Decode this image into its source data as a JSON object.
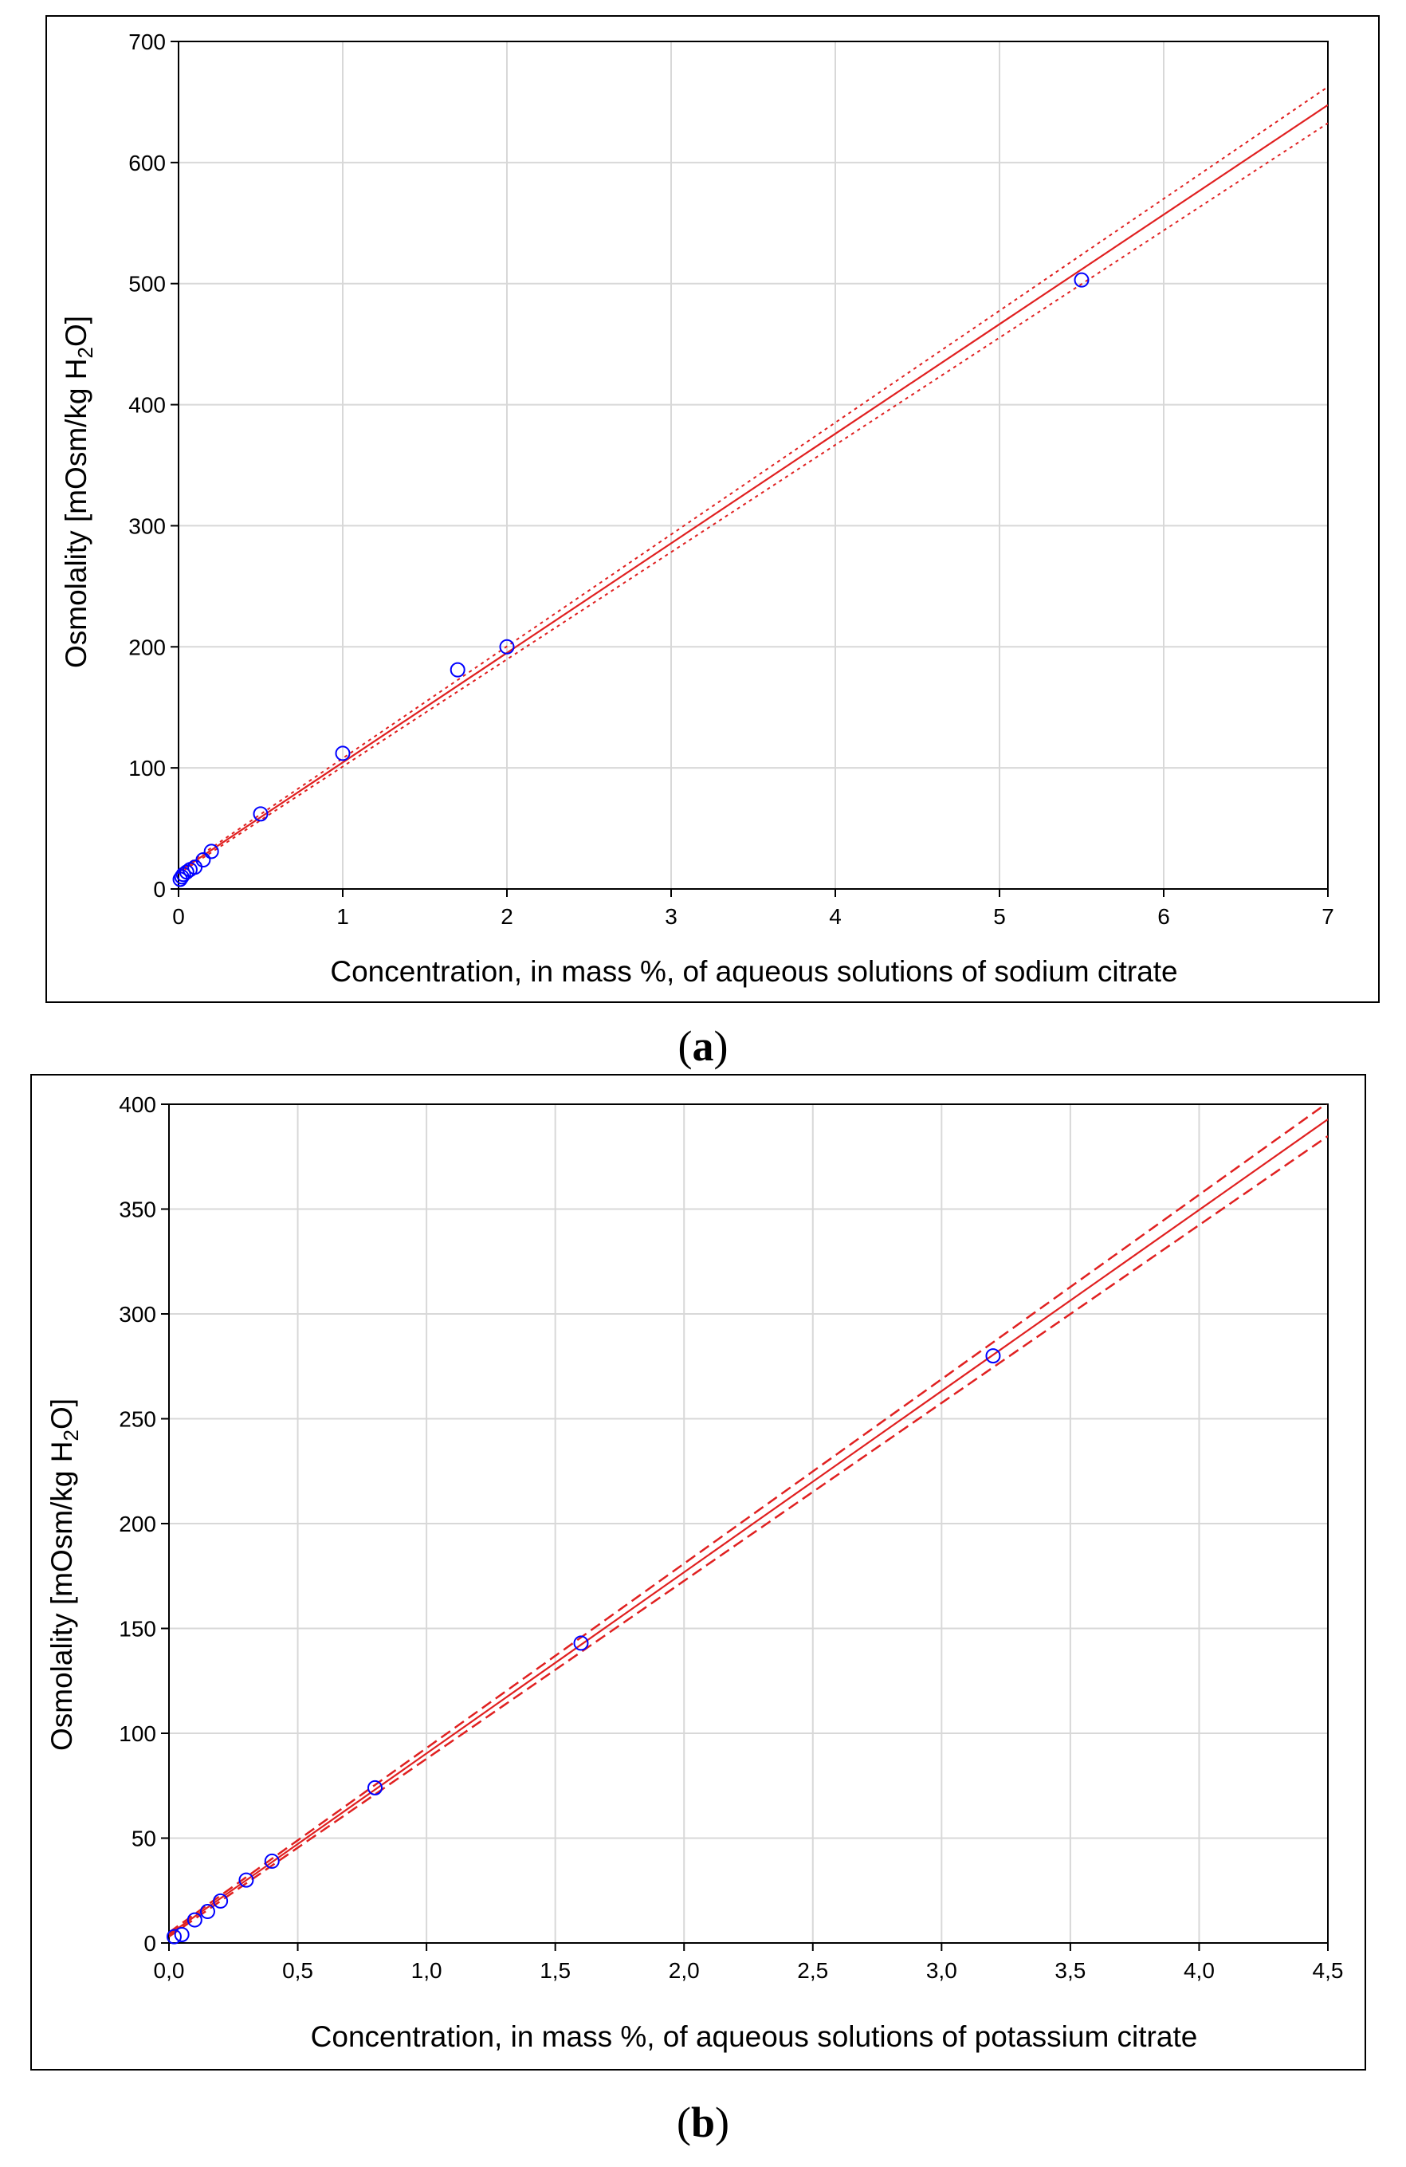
{
  "chart_data": [
    {
      "type": "scatter",
      "panel_label": "a",
      "xlabel": "Concentration, in mass %, of aqueous solutions of sodium citrate",
      "ylabel": "Osmolality [mOsm/kg H2O]",
      "xlim": [
        0,
        7
      ],
      "ylim": [
        0,
        700
      ],
      "xticks": [
        "0",
        "1",
        "2",
        "3",
        "4",
        "5",
        "6",
        "7"
      ],
      "yticks": [
        "0",
        "100",
        "200",
        "300",
        "400",
        "500",
        "600",
        "700"
      ],
      "grid": true,
      "points": [
        {
          "x": 0.01,
          "y": 8
        },
        {
          "x": 0.02,
          "y": 10
        },
        {
          "x": 0.03,
          "y": 12
        },
        {
          "x": 0.05,
          "y": 14
        },
        {
          "x": 0.07,
          "y": 16
        },
        {
          "x": 0.1,
          "y": 18
        },
        {
          "x": 0.15,
          "y": 24
        },
        {
          "x": 0.2,
          "y": 31
        },
        {
          "x": 0.5,
          "y": 62
        },
        {
          "x": 1.0,
          "y": 112
        },
        {
          "x": 1.7,
          "y": 181
        },
        {
          "x": 2.0,
          "y": 200
        },
        {
          "x": 5.5,
          "y": 503
        }
      ],
      "fit": {
        "intercept": 14,
        "slope": 90.5
      },
      "confidence_band": {
        "half_width_at_0": 1.5,
        "half_width_at_max": 15
      },
      "band_style": "dotted",
      "point_color": "#0000ff",
      "line_color": "#e02020"
    },
    {
      "type": "scatter",
      "panel_label": "b",
      "xlabel": "Concentration, in mass %, of aqueous solutions of potassium citrate",
      "ylabel": "Osmolality [mOsm/kg H2O]",
      "xlim": [
        0,
        4.5
      ],
      "ylim": [
        0,
        400
      ],
      "xticks": [
        "0,0",
        "0,5",
        "1,0",
        "1,5",
        "2,0",
        "2,5",
        "3,0",
        "3,5",
        "4,0",
        "4,5"
      ],
      "yticks": [
        "0",
        "50",
        "100",
        "150",
        "200",
        "250",
        "300",
        "350",
        "400"
      ],
      "grid": true,
      "points": [
        {
          "x": 0.02,
          "y": 3
        },
        {
          "x": 0.05,
          "y": 4
        },
        {
          "x": 0.1,
          "y": 11
        },
        {
          "x": 0.15,
          "y": 15
        },
        {
          "x": 0.2,
          "y": 20
        },
        {
          "x": 0.3,
          "y": 30
        },
        {
          "x": 0.4,
          "y": 39
        },
        {
          "x": 0.8,
          "y": 74
        },
        {
          "x": 1.6,
          "y": 143
        },
        {
          "x": 3.2,
          "y": 280
        }
      ],
      "fit": {
        "intercept": 4,
        "slope": 86.4
      },
      "confidence_band": {
        "half_width_at_0": 1,
        "half_width_at_max": 8
      },
      "band_style": "dashed",
      "point_color": "#0000ff",
      "line_color": "#e02020"
    }
  ]
}
